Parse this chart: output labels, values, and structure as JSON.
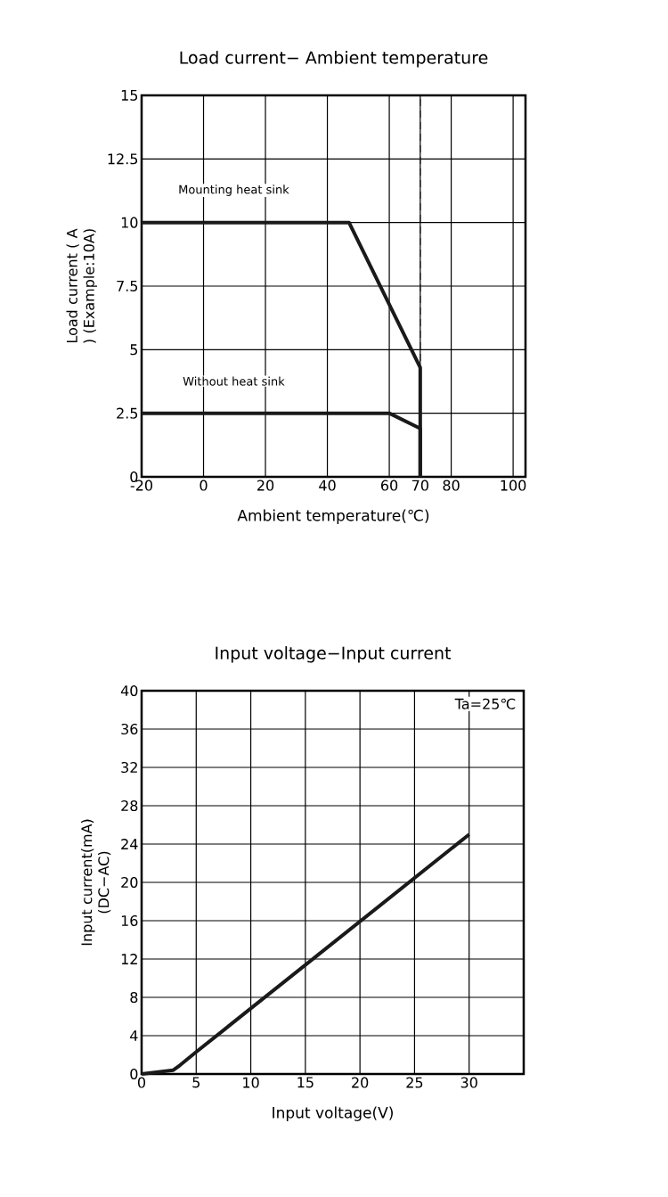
{
  "chart_data": [
    {
      "type": "line",
      "title": "Load current− Ambient temperature",
      "xlabel": "Ambient temperature(℃)",
      "ylabel": "Load current ( A ) (Example:10A)",
      "series": [
        {
          "name": "Mounting heat sink",
          "color": "#1a1a1a",
          "x": [
            -20,
            47,
            70,
            70
          ],
          "values": [
            10,
            10,
            4.3,
            0
          ]
        },
        {
          "name": "Without heat sink",
          "color": "#1a1a1a",
          "x": [
            -20,
            60,
            70,
            70
          ],
          "values": [
            2.5,
            2.5,
            1.9,
            0
          ]
        }
      ],
      "xlim": [
        -20,
        104
      ],
      "ylim": [
        0,
        15
      ],
      "xticks": [
        -20,
        0,
        20,
        40,
        60,
        70,
        80,
        100
      ],
      "yticks": [
        0,
        2.5,
        5,
        7.5,
        10,
        12.5,
        15
      ],
      "ref_lines": [
        {
          "axis": "x",
          "value": 70,
          "line_style": "dashed",
          "color": "#1a1a1a"
        }
      ],
      "grid": true,
      "line_style": "solid"
    },
    {
      "type": "line",
      "title": "Input voltage−Input current",
      "xlabel": "Input voltage(V)",
      "ylabel": "Input current(mA) (DC−AC)",
      "series": [
        {
          "color": "#1a1a1a",
          "x": [
            0,
            2.9,
            3.5,
            5,
            30
          ],
          "values": [
            0,
            0.4,
            0.9,
            2.3,
            25
          ]
        }
      ],
      "xlim": [
        0,
        35
      ],
      "ylim": [
        0,
        40
      ],
      "xticks": [
        0,
        5,
        10,
        15,
        20,
        25,
        30
      ],
      "yticks": [
        0,
        4,
        8,
        12,
        16,
        20,
        24,
        28,
        32,
        36,
        40
      ],
      "annotations": [
        "Ta=25℃"
      ],
      "grid": true,
      "line_style": "solid"
    }
  ]
}
